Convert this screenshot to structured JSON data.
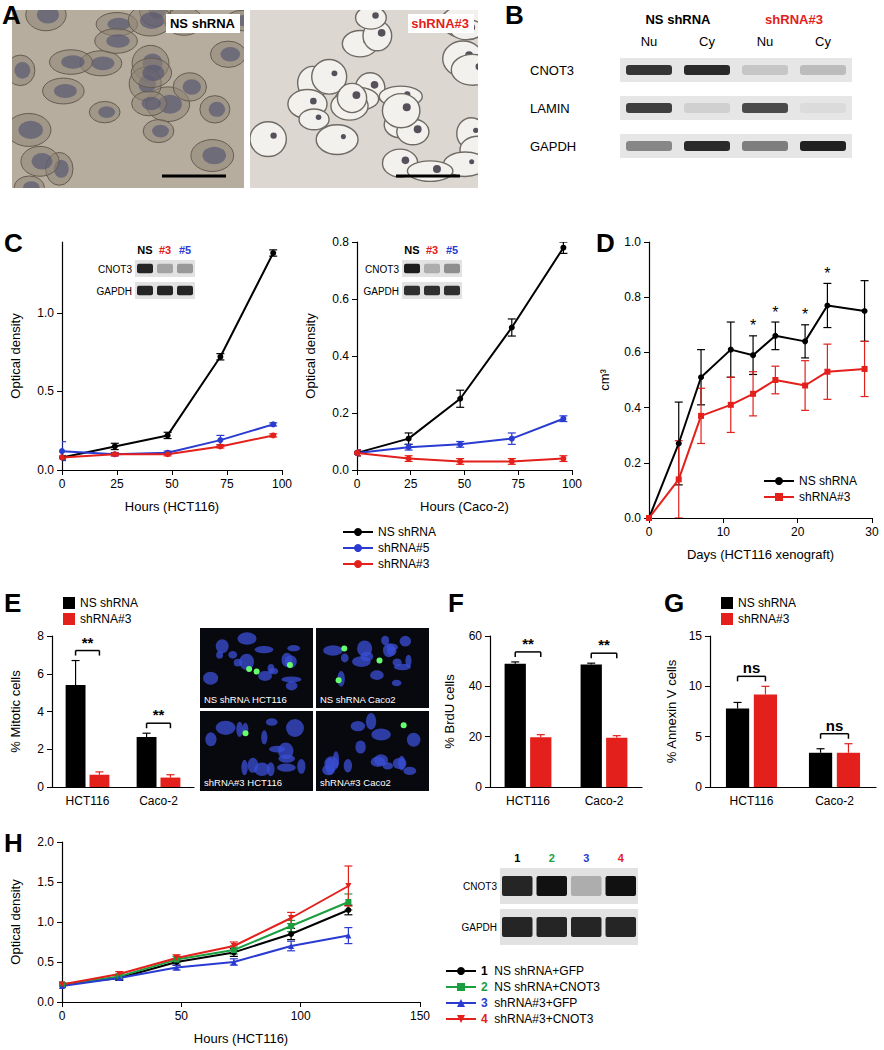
{
  "micrographs": {
    "title": "A",
    "images": [
      {
        "label": "NS shRNA",
        "color": "#000000"
      },
      {
        "label": "shRNA#3",
        "color": "#e3201b"
      }
    ]
  },
  "fractionation_blot": {
    "title": "B",
    "groups": [
      {
        "label": "NS shRNA",
        "color": "#000000",
        "lanes": [
          "Nu",
          "Cy"
        ]
      },
      {
        "label": "shRNA#3",
        "color": "#e3201b",
        "lanes": [
          "Nu",
          "Cy"
        ]
      }
    ],
    "rows": [
      {
        "label": "CNOT3",
        "intensity": [
          0.85,
          0.9,
          0.15,
          0.2
        ]
      },
      {
        "label": "LAMIN",
        "intensity": [
          0.8,
          0.1,
          0.75,
          0.05
        ]
      },
      {
        "label": "GAPDH",
        "intensity": [
          0.45,
          0.9,
          0.5,
          0.95
        ]
      }
    ]
  },
  "fluorescence": {
    "images": [
      {
        "label": "NS shRNA HCT116"
      },
      {
        "label": "NS shRNA Caco2"
      },
      {
        "label": "shRNA#3 HCT116"
      },
      {
        "label": "shRNA#3 Caco2"
      }
    ]
  },
  "chart_data": [
    {
      "type": "line",
      "title": "C",
      "xlabel": "Hours (HCT116)",
      "ylabel": "Optical density",
      "x": [
        0,
        24,
        48,
        72,
        96
      ],
      "xlim": [
        0,
        100
      ],
      "xticks": [
        0,
        25,
        50,
        75,
        100
      ],
      "ylim": [
        0,
        1.45
      ],
      "yticks": [
        {
          "value": 0,
          "label": "0.0"
        },
        {
          "value": 0.5,
          "label": "0.5"
        },
        {
          "value": 1,
          "label": "1.0"
        }
      ],
      "grid": false,
      "series": [
        {
          "name": "NS shRNA",
          "color": "#000000",
          "marker": "circle",
          "values": [
            0.08,
            0.15,
            0.22,
            0.72,
            1.38
          ],
          "errors": [
            0.01,
            0.02,
            0.02,
            0.02,
            0.02
          ]
        },
        {
          "name": "shRNA#5",
          "color": "#2a3bd1",
          "marker": "circle",
          "values": [
            0.12,
            0.1,
            0.11,
            0.19,
            0.29
          ],
          "errors": [
            0.06,
            0.01,
            0.01,
            0.03,
            0.01
          ]
        },
        {
          "name": "shRNA#3",
          "color": "#e3201b",
          "marker": "circle",
          "values": [
            0.08,
            0.1,
            0.1,
            0.15,
            0.22
          ],
          "errors": [
            0.01,
            0.01,
            0.01,
            0.01,
            0.01
          ]
        }
      ],
      "inset": {
        "lanes": [
          "NS",
          "#3",
          "#5"
        ],
        "lane_colors": [
          "#000000",
          "#e3201b",
          "#2a3bd1"
        ],
        "rows": [
          {
            "label": "CNOT3",
            "intensity": [
              0.9,
              0.3,
              0.35
            ]
          },
          {
            "label": "GAPDH",
            "intensity": [
              0.9,
              0.9,
              0.9
            ]
          }
        ]
      }
    },
    {
      "type": "line",
      "xlabel": "Hours (Caco-2)",
      "ylabel": "Optical density",
      "x": [
        0,
        24,
        48,
        72,
        96
      ],
      "xlim": [
        0,
        100
      ],
      "xticks": [
        0,
        25,
        50,
        75,
        100
      ],
      "ylim": [
        0,
        0.8
      ],
      "yticks": [
        {
          "value": 0,
          "label": "0.0"
        },
        {
          "value": 0.2,
          "label": "0.2"
        },
        {
          "value": 0.4,
          "label": "0.4"
        },
        {
          "value": 0.6,
          "label": "0.6"
        },
        {
          "value": 0.8,
          "label": "0.8"
        }
      ],
      "grid": false,
      "legend": "bottom-left",
      "series": [
        {
          "name": "NS shRNA",
          "color": "#000000",
          "marker": "circle",
          "values": [
            0.06,
            0.11,
            0.25,
            0.5,
            0.78
          ],
          "errors": [
            0.01,
            0.02,
            0.03,
            0.03,
            0.02
          ]
        },
        {
          "name": "shRNA#5",
          "color": "#2a3bd1",
          "marker": "circle",
          "values": [
            0.06,
            0.08,
            0.09,
            0.11,
            0.18
          ],
          "errors": [
            0.01,
            0.01,
            0.01,
            0.02,
            0.01
          ]
        },
        {
          "name": "shRNA#3",
          "color": "#e3201b",
          "marker": "circle",
          "values": [
            0.06,
            0.04,
            0.03,
            0.03,
            0.04
          ],
          "errors": [
            0.01,
            0.01,
            0.01,
            0.01,
            0.01
          ]
        }
      ],
      "inset": {
        "lanes": [
          "NS",
          "#3",
          "#5"
        ],
        "lane_colors": [
          "#000000",
          "#e3201b",
          "#2a3bd1"
        ],
        "rows": [
          {
            "label": "CNOT3",
            "intensity": [
              0.95,
              0.25,
              0.4
            ]
          },
          {
            "label": "GAPDH",
            "intensity": [
              0.85,
              0.85,
              0.85
            ]
          }
        ]
      }
    },
    {
      "type": "line",
      "title": "D",
      "xlabel": "Days (HCT116 xenograft)",
      "ylabel": "cm³",
      "x": [
        0,
        4,
        7,
        11,
        14,
        17,
        21,
        24,
        29
      ],
      "xlim": [
        0,
        30
      ],
      "xticks": [
        0,
        10,
        20,
        30
      ],
      "ylim": [
        0,
        1
      ],
      "yticks": [
        {
          "value": 0,
          "label": "0.0"
        },
        {
          "value": 0.2,
          "label": "0.2"
        },
        {
          "value": 0.4,
          "label": "0.4"
        },
        {
          "value": 0.6,
          "label": "0.6"
        },
        {
          "value": 0.8,
          "label": "0.8"
        },
        {
          "value": 1,
          "label": "1.0"
        }
      ],
      "grid": false,
      "legend": "bottom-right",
      "series": [
        {
          "name": "NS shRNA",
          "color": "#000000",
          "marker": "circle",
          "values": [
            0,
            0.27,
            0.51,
            0.61,
            0.59,
            0.66,
            0.64,
            0.77,
            0.75
          ],
          "errors": [
            0,
            0.15,
            0.1,
            0.1,
            0.07,
            0.05,
            0.06,
            0.08,
            0.11
          ]
        },
        {
          "name": "shRNA#3",
          "color": "#e3201b",
          "marker": "square",
          "values": [
            0,
            0.14,
            0.37,
            0.41,
            0.45,
            0.5,
            0.48,
            0.53,
            0.54
          ],
          "errors": [
            0,
            0.14,
            0.1,
            0.1,
            0.08,
            0.05,
            0.09,
            0.1,
            0.1
          ]
        }
      ],
      "annotations": [
        {
          "x": 14,
          "text": "*"
        },
        {
          "x": 17,
          "text": "*"
        },
        {
          "x": 21,
          "text": "*"
        },
        {
          "x": 24,
          "text": "*"
        }
      ]
    },
    {
      "type": "bar",
      "title": "E",
      "ylabel": "% Mitotic cells",
      "categories": [
        "HCT116",
        "Caco-2"
      ],
      "ylim": [
        0,
        8
      ],
      "yticks": [
        0,
        2,
        4,
        6,
        8
      ],
      "grid": false,
      "legend": "top-left",
      "series": [
        {
          "name": "NS shRNA",
          "color": "#000000",
          "values": [
            5.4,
            2.65
          ],
          "errors": [
            1.3,
            0.2
          ]
        },
        {
          "name": "shRNA#3",
          "color": "#e3201b",
          "values": [
            0.65,
            0.5
          ],
          "errors": [
            0.15,
            0.15
          ]
        }
      ],
      "annotations": [
        {
          "category": "HCT116",
          "text": "**"
        },
        {
          "category": "Caco-2",
          "text": "**"
        }
      ]
    },
    {
      "type": "bar",
      "title": "F",
      "ylabel": "% BrdU cells",
      "categories": [
        "HCT116",
        "Caco-2"
      ],
      "ylim": [
        0,
        60
      ],
      "yticks": [
        0,
        20,
        40,
        60
      ],
      "grid": false,
      "series": [
        {
          "name": "NS shRNA",
          "color": "#000000",
          "values": [
            49,
            48.7
          ],
          "errors": [
            0.7,
            0.5
          ]
        },
        {
          "name": "shRNA#3",
          "color": "#e3201b",
          "values": [
            19.8,
            19.6
          ],
          "errors": [
            1,
            0.8
          ]
        }
      ],
      "annotations": [
        {
          "category": "HCT116",
          "text": "**"
        },
        {
          "category": "Caco-2",
          "text": "**"
        }
      ]
    },
    {
      "type": "bar",
      "title": "G",
      "ylabel": "% Annexin V cells",
      "categories": [
        "HCT116",
        "Caco-2"
      ],
      "ylim": [
        0,
        15
      ],
      "yticks": [
        0,
        5,
        10,
        15
      ],
      "grid": false,
      "legend": "top-left",
      "series": [
        {
          "name": "NS shRNA",
          "color": "#000000",
          "values": [
            7.8,
            3.4
          ],
          "errors": [
            0.6,
            0.4
          ]
        },
        {
          "name": "shRNA#3",
          "color": "#e3201b",
          "values": [
            9.2,
            3.4
          ],
          "errors": [
            0.8,
            0.9
          ]
        }
      ],
      "annotations": [
        {
          "category": "HCT116",
          "text": "ns"
        },
        {
          "category": "Caco-2",
          "text": "ns"
        }
      ]
    },
    {
      "type": "line",
      "title": "H",
      "xlabel": "Hours (HCT116)",
      "ylabel": "Optical density",
      "x": [
        0,
        24,
        48,
        72,
        96,
        120
      ],
      "xlim": [
        0,
        150
      ],
      "xticks": [
        0,
        50,
        100,
        150
      ],
      "ylim": [
        0,
        2
      ],
      "yticks": [
        {
          "value": 0,
          "label": "0.0"
        },
        {
          "value": 0.5,
          "label": "0.5"
        },
        {
          "value": 1,
          "label": "1.0"
        },
        {
          "value": 1.5,
          "label": "1.5"
        },
        {
          "value": 2,
          "label": "2.0"
        }
      ],
      "grid": false,
      "legend": "right",
      "series": [
        {
          "lane": "1",
          "name": "NS shRNA+GFP",
          "color": "#000000",
          "marker": "circle",
          "values": [
            0.22,
            0.3,
            0.5,
            0.62,
            0.85,
            1.15
          ],
          "errors": [
            0.02,
            0.03,
            0.04,
            0.05,
            0.07,
            0.06
          ]
        },
        {
          "lane": "2",
          "name": "NS shRNA+CNOT3",
          "color": "#1b9e3e",
          "marker": "square",
          "values": [
            0.22,
            0.32,
            0.53,
            0.65,
            0.95,
            1.25
          ],
          "errors": [
            0.02,
            0.03,
            0.04,
            0.05,
            0.07,
            0.1
          ]
        },
        {
          "lane": "3",
          "name": "shRNA#3+GFP",
          "color": "#2a3bd1",
          "marker": "triangle",
          "values": [
            0.2,
            0.3,
            0.43,
            0.5,
            0.7,
            0.83
          ],
          "errors": [
            0.02,
            0.02,
            0.03,
            0.04,
            0.06,
            0.1
          ]
        },
        {
          "lane": "4",
          "name": "shRNA#3+CNOT3",
          "color": "#e3201b",
          "marker": "triangle_down",
          "values": [
            0.22,
            0.35,
            0.55,
            0.7,
            1.05,
            1.45
          ],
          "errors": [
            0.02,
            0.03,
            0.04,
            0.05,
            0.07,
            0.25
          ]
        }
      ],
      "inset": {
        "lanes": [
          "1",
          "2",
          "3",
          "4"
        ],
        "lane_colors": [
          "#000000",
          "#1b9e3e",
          "#2a3bd1",
          "#e3201b"
        ],
        "rows": [
          {
            "label": "CNOT3",
            "intensity": [
              0.9,
              1,
              0.25,
              1
            ]
          },
          {
            "label": "GAPDH",
            "intensity": [
              0.9,
              0.9,
              0.9,
              0.9
            ]
          }
        ]
      }
    }
  ]
}
